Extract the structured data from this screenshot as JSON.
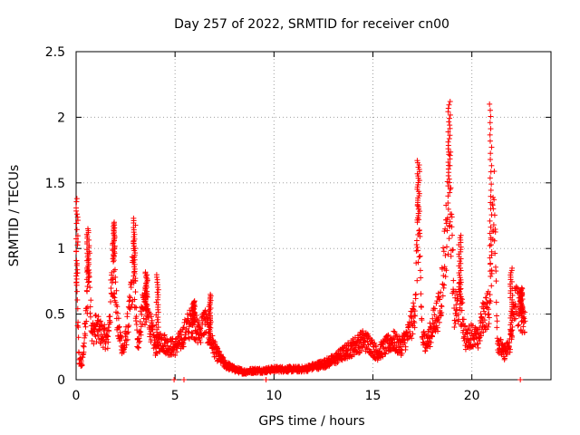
{
  "chart_data": {
    "type": "scatter",
    "title": "Day 257 of 2022, SRMTID for receiver cn00",
    "xlabel": "GPS time / hours",
    "ylabel": "SRMTID / TECUs",
    "xlim": [
      0,
      24
    ],
    "ylim": [
      0,
      2.5
    ],
    "xticks": [
      0,
      5,
      10,
      15,
      20
    ],
    "xtick_labels": [
      "0",
      "5",
      "10",
      "15",
      "20"
    ],
    "yticks": [
      0,
      0.5,
      1,
      1.5,
      2,
      2.5
    ],
    "ytick_labels": [
      "0",
      "0.5",
      "1",
      "1.5",
      "2",
      "2.5"
    ],
    "grid": true,
    "marker": "+",
    "series": [
      {
        "name": "SRMTID cn00",
        "color": "#ff0000",
        "anchor_curve": {
          "x": [
            0.0,
            0.05,
            0.15,
            0.3,
            0.5,
            0.65,
            0.8,
            1.0,
            1.3,
            1.6,
            1.9,
            2.1,
            2.4,
            2.7,
            2.9,
            3.1,
            3.4,
            3.7,
            4.0,
            4.3,
            4.7,
            5.0,
            5.3,
            5.6,
            5.9,
            6.2,
            6.5,
            6.8,
            7.1,
            7.5,
            8.0,
            8.5,
            9.0,
            9.5,
            10.0,
            10.5,
            11.0,
            11.5,
            12.0,
            12.5,
            13.0,
            13.5,
            14.0,
            14.5,
            14.8,
            15.2,
            15.6,
            16.0,
            16.4,
            16.8,
            17.1,
            17.3,
            17.5,
            17.8,
            18.1,
            18.4,
            18.7,
            18.9,
            19.1,
            19.4,
            19.7,
            20.0,
            20.3,
            20.6,
            20.9,
            21.1,
            21.3,
            21.6,
            21.9,
            22.2,
            22.5,
            22.7
          ],
          "y": [
            0.9,
            0.6,
            0.15,
            0.12,
            0.45,
            0.9,
            0.35,
            0.4,
            0.35,
            0.3,
            0.9,
            0.4,
            0.22,
            0.5,
            0.9,
            0.25,
            0.6,
            0.45,
            0.25,
            0.3,
            0.25,
            0.25,
            0.3,
            0.4,
            0.45,
            0.35,
            0.45,
            0.3,
            0.2,
            0.12,
            0.08,
            0.06,
            0.07,
            0.07,
            0.08,
            0.08,
            0.08,
            0.08,
            0.1,
            0.12,
            0.15,
            0.2,
            0.25,
            0.3,
            0.28,
            0.2,
            0.25,
            0.3,
            0.25,
            0.35,
            0.5,
            1.2,
            0.3,
            0.3,
            0.45,
            0.55,
            1.1,
            1.5,
            0.5,
            0.6,
            0.3,
            0.35,
            0.3,
            0.5,
            0.55,
            1.5,
            0.3,
            0.2,
            0.25,
            0.6,
            0.5,
            0.45
          ]
        },
        "peaks": [
          {
            "x": 0.03,
            "y": 1.38
          },
          {
            "x": 0.6,
            "y": 1.15
          },
          {
            "x": 1.9,
            "y": 1.2
          },
          {
            "x": 2.95,
            "y": 1.23
          },
          {
            "x": 3.55,
            "y": 0.82
          },
          {
            "x": 4.1,
            "y": 0.8
          },
          {
            "x": 5.95,
            "y": 0.6
          },
          {
            "x": 6.75,
            "y": 0.65
          },
          {
            "x": 17.3,
            "y": 1.67
          },
          {
            "x": 18.85,
            "y": 2.12
          },
          {
            "x": 19.4,
            "y": 1.1
          },
          {
            "x": 20.95,
            "y": 2.1
          },
          {
            "x": 22.0,
            "y": 0.85
          },
          {
            "x": 22.5,
            "y": 0.7
          }
        ],
        "zero_points": [
          {
            "x": 4.95,
            "y": 0.0
          },
          {
            "x": 5.45,
            "y": 0.0
          },
          {
            "x": 9.6,
            "y": 0.0
          },
          {
            "x": 22.45,
            "y": 0.0
          }
        ]
      }
    ]
  }
}
